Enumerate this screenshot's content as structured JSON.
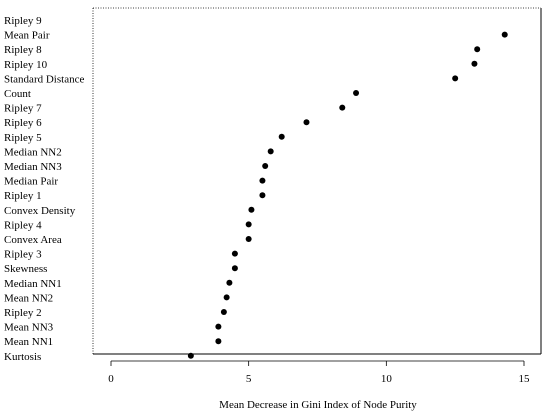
{
  "chart_data": {
    "type": "scatter",
    "title": "",
    "xlabel": "Mean Decrease in Gini Index of Node Purity",
    "ylabel": "",
    "xlim": [
      0,
      15
    ],
    "xticks": [
      "0",
      "5",
      "10",
      "15"
    ],
    "grid": false,
    "legend": "none",
    "point_color": "#000000",
    "categories": [
      "Ripley 9",
      "Mean Pair",
      "Ripley 8",
      "Ripley 10",
      "Standard Distance",
      "Count",
      "Ripley 7",
      "Ripley 6",
      "Ripley 5",
      "Median NN2",
      "Median NN3",
      "Median Pair",
      "Ripley 1",
      "Convex Density",
      "Ripley 4",
      "Convex Area",
      "Ripley 3",
      "Skewness",
      "Median NN1",
      "Mean NN2",
      "Ripley 2",
      "Mean NN3",
      "Mean NN1",
      "Kurtosis"
    ],
    "values": [
      null,
      14.3,
      13.3,
      13.2,
      12.5,
      8.9,
      8.4,
      7.1,
      6.2,
      5.8,
      5.6,
      5.5,
      5.5,
      5.1,
      5.0,
      5.0,
      4.5,
      4.5,
      4.3,
      4.2,
      4.1,
      3.9,
      3.9,
      2.9
    ]
  }
}
